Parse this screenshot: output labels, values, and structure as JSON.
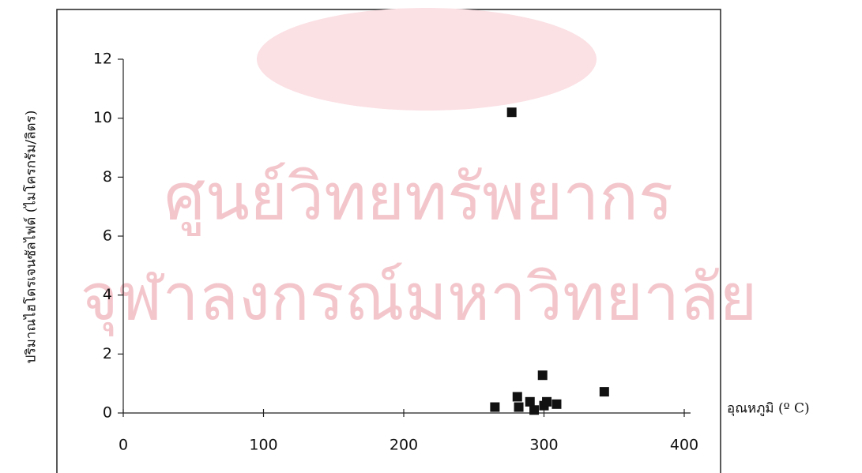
{
  "chart_data": {
    "type": "scatter",
    "x_label": "อุณหภูมิ (º C)",
    "y_label": "ปริมาณไฮโดรเจนซัลไฟด์ (ไมโครกรัม/ลิตร)",
    "watermark": [
      "ศูนย์วิทยทรัพยากร",
      "จุฬาลงกรณ์มหาวิทยาลัย"
    ],
    "color": "#111111",
    "x": [
      265,
      277,
      281,
      282,
      290,
      293,
      299,
      300,
      302,
      309,
      343
    ],
    "values": [
      0.2,
      10.2,
      0.55,
      0.2,
      0.38,
      0.1,
      1.28,
      0.25,
      0.38,
      0.3,
      0.72
    ],
    "xlim": [
      0,
      400
    ],
    "xticks": [
      0,
      100,
      200,
      300,
      400
    ],
    "ylim": [
      0,
      12
    ],
    "yticks": [
      0,
      2,
      4,
      6,
      8,
      10,
      12
    ]
  }
}
